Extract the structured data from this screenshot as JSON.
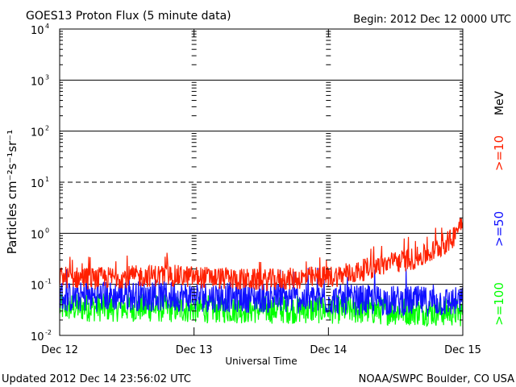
{
  "chart_data": {
    "type": "line",
    "title": "GOES13 Proton Flux (5 minute data)",
    "begin_label": "Begin: 2012 Dec 12 0000 UTC",
    "xlabel": "Universal Time",
    "ylabel": "Particles cm⁻²s⁻¹sr⁻¹",
    "y_scale": "log",
    "ylim": [
      0.01,
      10000
    ],
    "y_ticks": [
      {
        "value": 0.01,
        "base": "10",
        "exp": "-2"
      },
      {
        "value": 0.1,
        "base": "10",
        "exp": "-1"
      },
      {
        "value": 1,
        "base": "10",
        "exp": "0"
      },
      {
        "value": 10,
        "base": "10",
        "exp": "1"
      },
      {
        "value": 100,
        "base": "10",
        "exp": "2"
      },
      {
        "value": 1000,
        "base": "10",
        "exp": "3"
      },
      {
        "value": 10000,
        "base": "10",
        "exp": "4"
      }
    ],
    "xlim": [
      "2012-12-12 00:00",
      "2012-12-15 00:00"
    ],
    "x_ticks": [
      "Dec 12",
      "Dec 13",
      "Dec 14",
      "Dec 15"
    ],
    "threshold_lines": [
      {
        "value": 10,
        "style": "dashed"
      },
      {
        "value": 1,
        "style": "solid"
      }
    ],
    "units_label": "MeV",
    "series": [
      {
        "name": ">=10",
        "color": "#ff2000",
        "x_hours": [
          0,
          6,
          12,
          18,
          24,
          30,
          36,
          42,
          48,
          52,
          56,
          60,
          64,
          66,
          68,
          70,
          72
        ],
        "values": [
          0.14,
          0.13,
          0.14,
          0.15,
          0.14,
          0.13,
          0.12,
          0.13,
          0.14,
          0.16,
          0.22,
          0.27,
          0.33,
          0.4,
          0.55,
          0.75,
          2.0
        ]
      },
      {
        "name": ">=50",
        "color": "#1010ff",
        "x_hours": [
          0,
          12,
          24,
          36,
          48,
          60,
          72
        ],
        "values": [
          0.055,
          0.06,
          0.057,
          0.055,
          0.05,
          0.048,
          0.045
        ]
      },
      {
        "name": ">=100",
        "color": "#00ff00",
        "x_hours": [
          0,
          12,
          24,
          36,
          48,
          60,
          72
        ],
        "values": [
          0.035,
          0.035,
          0.033,
          0.032,
          0.032,
          0.03,
          0.028
        ]
      }
    ]
  },
  "footer": {
    "updated": "Updated 2012 Dec 14 23:56:02 UTC",
    "credit": "NOAA/SWPC Boulder, CO USA"
  }
}
